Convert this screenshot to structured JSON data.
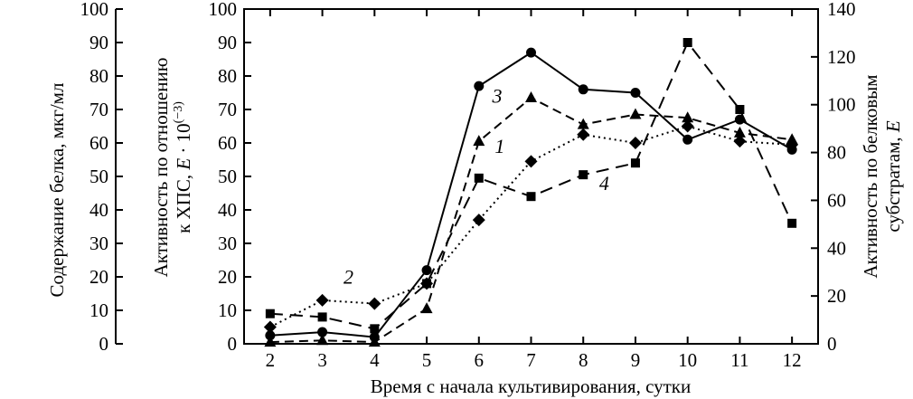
{
  "chart_data": {
    "type": "line",
    "xlabel": "Время с начала культивирования, сутки",
    "x": [
      2,
      3,
      4,
      5,
      6,
      7,
      8,
      9,
      10,
      11,
      12
    ],
    "xlim": [
      1.5,
      12.5
    ],
    "x_ticks": [
      "2",
      "3",
      "4",
      "5",
      "6",
      "7",
      "8",
      "9",
      "10",
      "11",
      "12"
    ],
    "y_left_outer": {
      "label": "Содержание белка, мкг/мл",
      "ylim": [
        0,
        100
      ],
      "ticks": [
        "0",
        "10",
        "20",
        "30",
        "40",
        "50",
        "60",
        "70",
        "80",
        "90",
        "100"
      ]
    },
    "y_left_inner": {
      "label_line1": "Активность по отношению",
      "label_line2_prefix": "к ХПС, ",
      "label_var": "E",
      "label_mid": " · 10",
      "label_sup": "(−3)",
      "ylim": [
        0,
        100
      ],
      "ticks": [
        "0",
        "10",
        "20",
        "30",
        "40",
        "50",
        "60",
        "70",
        "80",
        "90",
        "100"
      ]
    },
    "y_right": {
      "label_line1": "Активность по белковым",
      "label_line2_prefix": "субстратам, ",
      "label_var": "E",
      "ylim": [
        0,
        140
      ],
      "ticks": [
        "0",
        "20",
        "40",
        "60",
        "80",
        "100",
        "120",
        "140"
      ]
    },
    "series": [
      {
        "name": "1",
        "marker": "circle",
        "dash": "solid",
        "values": [
          2.5,
          3.5,
          2,
          22,
          77,
          87,
          76,
          75,
          61,
          67,
          58
        ]
      },
      {
        "name": "2",
        "marker": "diamond",
        "dash": "dotted",
        "values": [
          5,
          13,
          12,
          18,
          37,
          54.5,
          62.5,
          60,
          65,
          60.5,
          59.5
        ]
      },
      {
        "name": "3",
        "marker": "triangle",
        "dash": "dashed",
        "values": [
          0.5,
          1,
          0.5,
          10.5,
          60.5,
          73.5,
          65.5,
          68.5,
          67.5,
          63,
          61
        ]
      },
      {
        "name": "4",
        "marker": "square",
        "dash": "longdash",
        "values": [
          9,
          8,
          4.5,
          18,
          49.5,
          44,
          50.5,
          54,
          90,
          70,
          36
        ]
      }
    ],
    "annotations": [
      {
        "text": "1",
        "x": 6.4,
        "y": 57
      },
      {
        "text": "2",
        "x": 3.5,
        "y": 18
      },
      {
        "text": "3",
        "x": 6.35,
        "y": 72
      },
      {
        "text": "4",
        "x": 8.4,
        "y": 46
      }
    ],
    "grid": false
  }
}
